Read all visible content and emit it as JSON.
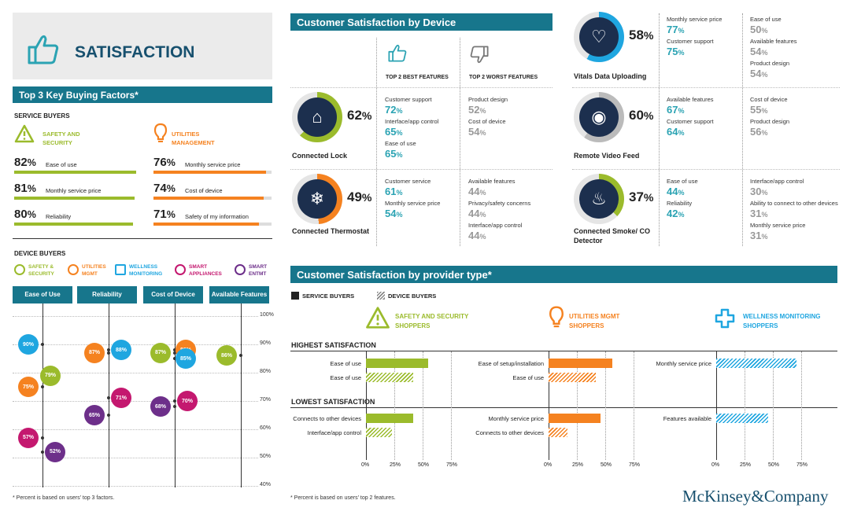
{
  "colors": {
    "teal": "#17768c",
    "green": "#9bbb2c",
    "orange": "#f58220",
    "blue": "#1fa6e0",
    "magenta": "#c4186f",
    "purple": "#6d2f8a",
    "accent": "#2ba3b3"
  },
  "header": {
    "title": "SATISFACTION"
  },
  "top_factors": {
    "title": "Top 3 Key Buying Factors*",
    "service_buyers_label": "SERVICE BUYERS",
    "safety_label_1": "SAFETY AND",
    "safety_label_2": "SECURITY",
    "utilities_label_1": "UTILITIES",
    "utilities_label_2": "MANAGEMENT",
    "safety_rows": [
      {
        "pct": "82",
        "label": "Ease of use",
        "value": 82
      },
      {
        "pct": "81",
        "label": "Monthly service price",
        "value": 81
      },
      {
        "pct": "80",
        "label": "Reliability",
        "value": 80
      }
    ],
    "utilities_rows": [
      {
        "pct": "76",
        "label": "Monthly service price",
        "value": 76
      },
      {
        "pct": "74",
        "label": "Cost of device",
        "value": 74
      },
      {
        "pct": "71",
        "label": "Safety of my information",
        "value": 71
      }
    ]
  },
  "device_buyers": {
    "title": "DEVICE BUYERS",
    "legend": [
      {
        "l1": "SAFETY &",
        "l2": "SECURITY",
        "color": "#9bbb2c",
        "icon": "warning-icon"
      },
      {
        "l1": "UTILITIES",
        "l2": "MGMT",
        "color": "#f58220",
        "icon": "lightbulb-icon"
      },
      {
        "l1": "WELLNESS",
        "l2": "MONITORING",
        "color": "#1fa6e0",
        "icon": "cross-icon"
      },
      {
        "l1": "SMART",
        "l2": "APPLIANCES",
        "color": "#c4186f",
        "icon": "power-icon"
      },
      {
        "l1": "SMART",
        "l2": "ENTMT",
        "color": "#6d2f8a",
        "icon": "music-icon"
      }
    ],
    "footnote": "* Percent is based on users' top 3 factors."
  },
  "chart_data": [
    {
      "type": "scatter",
      "title": "",
      "categories": [
        "Ease of Use",
        "Reliability",
        "Cost of Device",
        "Available Features"
      ],
      "ylim": [
        40,
        100
      ],
      "yticks": [
        "40%",
        "50%",
        "60%",
        "70%",
        "80%",
        "90%",
        "100%"
      ],
      "series": [
        {
          "name": "SAFETY & SECURITY",
          "color": "#9bbb2c",
          "values": [
            79,
            null,
            87,
            86
          ]
        },
        {
          "name": "UTILITIES MGMT",
          "color": "#f58220",
          "values": [
            75,
            87,
            88,
            null
          ]
        },
        {
          "name": "WELLNESS MONITORING",
          "color": "#1fa6e0",
          "values": [
            90,
            88,
            85,
            null
          ]
        },
        {
          "name": "SMART APPLIANCES",
          "color": "#c4186f",
          "values": [
            57,
            71,
            70,
            null
          ]
        },
        {
          "name": "SMART ENTMT",
          "color": "#6d2f8a",
          "values": [
            52,
            65,
            68,
            null
          ]
        }
      ]
    },
    {
      "type": "bar",
      "title": "Customer Satisfaction by provider type*",
      "xlim": [
        0,
        75
      ],
      "xticks": [
        "0%",
        "25%",
        "50%",
        "75%"
      ],
      "legend": [
        "SERVICE BUYERS",
        "DEVICE BUYERS"
      ],
      "groups": [
        {
          "name": "SAFETY AND SECURITY SHOPPERS",
          "color": "#9bbb2c",
          "highest": [
            {
              "label": "Ease of use",
              "buyer": "service",
              "value": 55
            },
            {
              "label": "Ease of use",
              "buyer": "device",
              "value": 42
            }
          ],
          "lowest": [
            {
              "label": "Connects to other devices",
              "buyer": "service",
              "value": 42
            },
            {
              "label": "Interface/app control",
              "buyer": "device",
              "value": 23
            }
          ]
        },
        {
          "name": "UTILITIES MGMT SHOPPERS",
          "color": "#f58220",
          "highest": [
            {
              "label": "Ease of setup/installation",
              "buyer": "service",
              "value": 56
            },
            {
              "label": "Ease of use",
              "buyer": "device",
              "value": 42
            }
          ],
          "lowest": [
            {
              "label": "Monthly service price",
              "buyer": "service",
              "value": 46
            },
            {
              "label": "Connects to other devices",
              "buyer": "device",
              "value": 17
            }
          ]
        },
        {
          "name": "WELLNESS MONITORING SHOPPERS",
          "color": "#1fa6e0",
          "highest": [
            {
              "label": "Monthly service price",
              "buyer": "device",
              "value": 71
            }
          ],
          "lowest": [
            {
              "label": "Features available",
              "buyer": "device",
              "value": 46
            }
          ]
        }
      ]
    }
  ],
  "by_device": {
    "title": "Customer Satisfaction by Device",
    "best_label": "TOP 2 BEST FEATURES",
    "worst_label": "TOP 2 WORST FEATURES",
    "devices": [
      {
        "name": "Connected Lock",
        "pct": "62",
        "value": 62,
        "icon": "lock-icon",
        "best": [
          {
            "l": "Customer support",
            "v": "72"
          },
          {
            "l": "Interface/app control",
            "v": "65"
          },
          {
            "l": "Ease of use",
            "v": "65"
          }
        ],
        "worst": [
          {
            "l": "Product design",
            "v": "52"
          },
          {
            "l": "Cost of device",
            "v": "54"
          }
        ]
      },
      {
        "name": "Connected Thermostat",
        "pct": "49",
        "value": 49,
        "icon": "snowflake-icon",
        "best": [
          {
            "l": "Customer service",
            "v": "61"
          },
          {
            "l": "Monthly service price",
            "v": "54"
          }
        ],
        "worst": [
          {
            "l": "Available features",
            "v": "44"
          },
          {
            "l": "Privacy/safety concerns",
            "v": "44"
          },
          {
            "l": "Interface/app control",
            "v": "44"
          }
        ]
      },
      {
        "name": "Vitals Data Uploading",
        "pct": "58",
        "value": 58,
        "icon": "heartbeat-icon",
        "best": [
          {
            "l": "Monthly service price",
            "v": "77"
          },
          {
            "l": "Customer support",
            "v": "75"
          }
        ],
        "worst": [
          {
            "l": "Ease of use",
            "v": "50"
          },
          {
            "l": "Available features",
            "v": "54"
          },
          {
            "l": "Product design",
            "v": "54"
          }
        ]
      },
      {
        "name": "Remote Video Feed",
        "pct": "60",
        "value": 60,
        "icon": "eye-icon",
        "best": [
          {
            "l": "Available features",
            "v": "67"
          },
          {
            "l": "Customer support",
            "v": "64"
          }
        ],
        "worst": [
          {
            "l": "Cost of device",
            "v": "55"
          },
          {
            "l": "Product design",
            "v": "56"
          }
        ]
      },
      {
        "name": "Connected Smoke/ CO Detector",
        "pct": "37",
        "value": 37,
        "icon": "smoke-detector-icon",
        "best": [
          {
            "l": "Ease of use",
            "v": "44"
          },
          {
            "l": "Reliability",
            "v": "42"
          }
        ],
        "worst": [
          {
            "l": "Interface/app control",
            "v": "30"
          },
          {
            "l": "Ability to connect to other devices",
            "v": "31"
          },
          {
            "l": "Monthly service price",
            "v": "31"
          }
        ]
      }
    ]
  },
  "provider": {
    "service_label": "SERVICE BUYERS",
    "device_label": "DEVICE BUYERS",
    "highest_label": "HIGHEST SATISFACTION",
    "lowest_label": "LOWEST SATISFACTION",
    "shopper_1": "SAFETY AND SECURITY",
    "shopper_1b": "SHOPPERS",
    "shopper_2": "UTILITIES MGMT",
    "shopper_2b": "SHOPPERS",
    "shopper_3": "WELLNESS MONITORING",
    "shopper_3b": "SHOPPERS",
    "footnote": "* Percent is based on users' top 2 features."
  },
  "brand": "McKinsey&Company",
  "pct_sign": "%"
}
